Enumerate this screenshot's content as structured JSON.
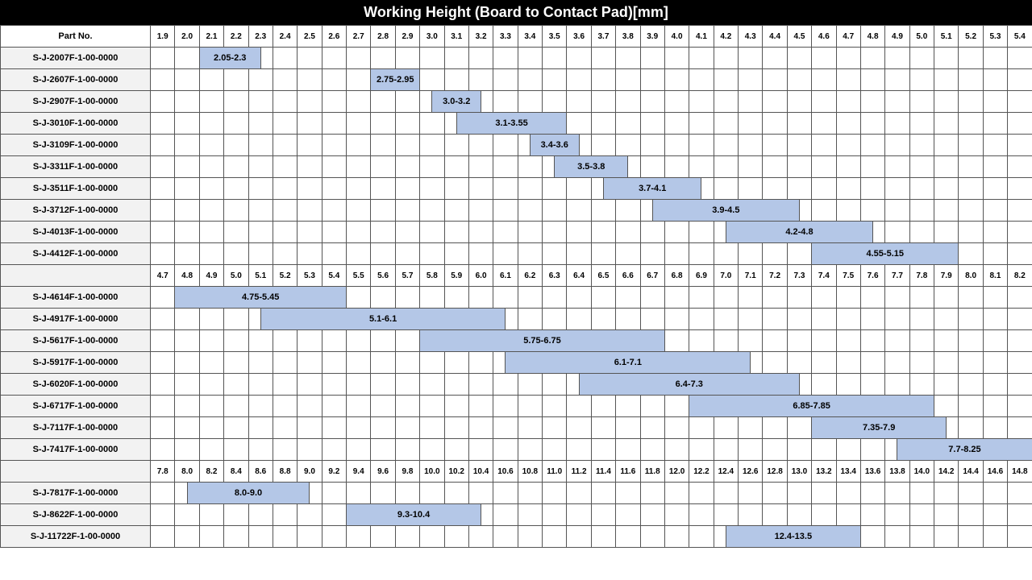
{
  "title": "Working Height (Board to Contact Pad)[mm]",
  "part_header": "Part No.",
  "bar_color": "#b4c7e7",
  "part_bg": "#f2f2f2",
  "border_color": "#555555",
  "font_family": "Arial",
  "sections": [
    {
      "scale_start": 1.9,
      "scale_step": 0.1,
      "labels": [
        "1.9",
        "2.0",
        "2.1",
        "2.2",
        "2.3",
        "2.4",
        "2.5",
        "2.6",
        "2.7",
        "2.8",
        "2.9",
        "3.0",
        "3.1",
        "3.2",
        "3.3",
        "3.4",
        "3.5",
        "3.6",
        "3.7",
        "3.8",
        "3.9",
        "4.0",
        "4.1",
        "4.2",
        "4.3",
        "4.4",
        "4.5",
        "4.6",
        "4.7",
        "4.8",
        "4.9",
        "5.0",
        "5.1",
        "5.2",
        "5.3",
        "5.4"
      ],
      "rows": [
        {
          "part": "S-J-2007F-1-00-0000",
          "range_start": 2.05,
          "range_end": 2.3,
          "label": "2.05-2.3"
        },
        {
          "part": "S-J-2607F-1-00-0000",
          "range_start": 2.75,
          "range_end": 2.95,
          "label": "2.75-2.95"
        },
        {
          "part": "S-J-2907F-1-00-0000",
          "range_start": 3.0,
          "range_end": 3.2,
          "label": "3.0-3.2"
        },
        {
          "part": "S-J-3010F-1-00-0000",
          "range_start": 3.1,
          "range_end": 3.55,
          "label": "3.1-3.55"
        },
        {
          "part": "S-J-3109F-1-00-0000",
          "range_start": 3.4,
          "range_end": 3.6,
          "label": "3.4-3.6"
        },
        {
          "part": "S-J-3311F-1-00-0000",
          "range_start": 3.5,
          "range_end": 3.8,
          "label": "3.5-3.8"
        },
        {
          "part": "S-J-3511F-1-00-0000",
          "range_start": 3.7,
          "range_end": 4.1,
          "label": "3.7-4.1"
        },
        {
          "part": "S-J-3712F-1-00-0000",
          "range_start": 3.9,
          "range_end": 4.5,
          "label": "3.9-4.5"
        },
        {
          "part": "S-J-4013F-1-00-0000",
          "range_start": 4.2,
          "range_end": 4.8,
          "label": "4.2-4.8"
        },
        {
          "part": "S-J-4412F-1-00-0000",
          "range_start": 4.55,
          "range_end": 5.15,
          "label": "4.55-5.15"
        }
      ]
    },
    {
      "scale_start": 4.7,
      "scale_step": 0.1,
      "labels": [
        "4.7",
        "4.8",
        "4.9",
        "5.0",
        "5.1",
        "5.2",
        "5.3",
        "5.4",
        "5.5",
        "5.6",
        "5.7",
        "5.8",
        "5.9",
        "6.0",
        "6.1",
        "6.2",
        "6.3",
        "6.4",
        "6.5",
        "6.6",
        "6.7",
        "6.8",
        "6.9",
        "7.0",
        "7.1",
        "7.2",
        "7.3",
        "7.4",
        "7.5",
        "7.6",
        "7.7",
        "7.8",
        "7.9",
        "8.0",
        "8.1",
        "8.2"
      ],
      "rows": [
        {
          "part": "S-J-4614F-1-00-0000",
          "range_start": 4.75,
          "range_end": 5.45,
          "label": "4.75-5.45"
        },
        {
          "part": "S-J-4917F-1-00-0000",
          "range_start": 5.1,
          "range_end": 6.1,
          "label": "5.1-6.1"
        },
        {
          "part": "S-J-5617F-1-00-0000",
          "range_start": 5.75,
          "range_end": 6.75,
          "label": "5.75-6.75"
        },
        {
          "part": "S-J-5917F-1-00-0000",
          "range_start": 6.1,
          "range_end": 7.1,
          "label": "6.1-7.1"
        },
        {
          "part": "S-J-6020F-1-00-0000",
          "range_start": 6.4,
          "range_end": 7.3,
          "label": "6.4-7.3"
        },
        {
          "part": "S-J-6717F-1-00-0000",
          "range_start": 6.85,
          "range_end": 7.85,
          "label": "6.85-7.85"
        },
        {
          "part": "S-J-7117F-1-00-0000",
          "range_start": 7.35,
          "range_end": 7.9,
          "label": "7.35-7.9"
        },
        {
          "part": "S-J-7417F-1-00-0000",
          "range_start": 7.7,
          "range_end": 8.25,
          "label": "7.7-8.25"
        }
      ]
    },
    {
      "scale_start": 7.8,
      "scale_step": 0.2,
      "labels": [
        "7.8",
        "8.0",
        "8.2",
        "8.4",
        "8.6",
        "8.8",
        "9.0",
        "9.2",
        "9.4",
        "9.6",
        "9.8",
        "10.0",
        "10.2",
        "10.4",
        "10.6",
        "10.8",
        "11.0",
        "11.2",
        "11.4",
        "11.6",
        "11.8",
        "12.0",
        "12.2",
        "12.4",
        "12.6",
        "12.8",
        "13.0",
        "13.2",
        "13.4",
        "13.6",
        "13.8",
        "14.0",
        "14.2",
        "14.4",
        "14.6",
        "14.8"
      ],
      "rows": [
        {
          "part": "S-J-7817F-1-00-0000",
          "range_start": 8.0,
          "range_end": 9.0,
          "label": "8.0-9.0"
        },
        {
          "part": "S-J-8622F-1-00-0000",
          "range_start": 9.3,
          "range_end": 10.4,
          "label": "9.3-10.4"
        },
        {
          "part": "S-J-11722F-1-00-0000",
          "range_start": 12.4,
          "range_end": 13.5,
          "label": "12.4-13.5"
        }
      ]
    }
  ]
}
